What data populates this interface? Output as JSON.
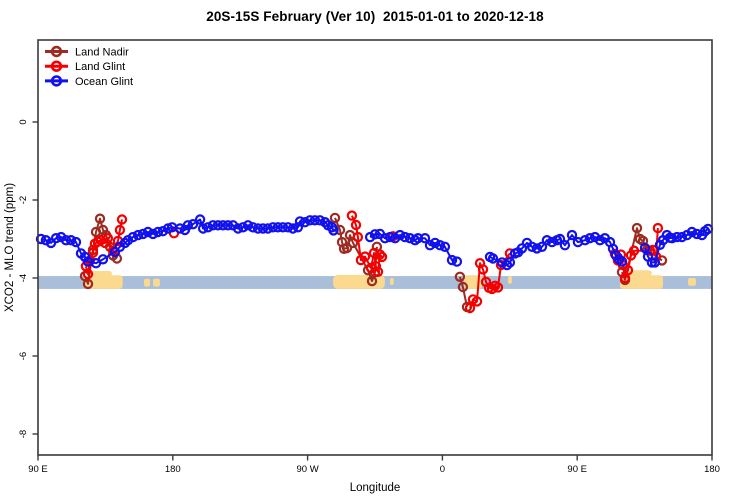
{
  "chart_data": {
    "type": "line",
    "title": "20S-15S February (Ver 10)  2015-01-01 to 2020-12-18",
    "xlabel": "Longitude",
    "ylabel": "XCO2 - MLO trend (ppm)",
    "x_axis_note": "longitude axis wraps eastward from 90E through 180, 90W, 0, 90E to 180 (450 degrees total)",
    "xlim_axis_units": [
      0,
      450
    ],
    "ylim": [
      -8.5,
      2.1
    ],
    "grid": "off",
    "legend_position": "top-left-inside",
    "axes": {
      "x": {
        "label": "Longitude",
        "ticks": [
          {
            "t": 0,
            "label": "90 E"
          },
          {
            "t": 90,
            "label": "180"
          },
          {
            "t": 180,
            "label": "90 W"
          },
          {
            "t": 270,
            "label": "0"
          },
          {
            "t": 360,
            "label": "90 E"
          },
          {
            "t": 450,
            "label": "180"
          }
        ]
      },
      "y": {
        "label": "XCO2 - MLO trend (ppm)",
        "ticks": [
          {
            "v": 0,
            "label": "0"
          },
          {
            "v": -2,
            "label": "-2"
          },
          {
            "v": -4,
            "label": "-4"
          },
          {
            "v": -6,
            "label": "-6"
          },
          {
            "v": -8,
            "label": "-8"
          }
        ]
      }
    },
    "legend": [
      {
        "name": "Land Nadir",
        "color": "#9C2B22"
      },
      {
        "name": "Land Glint",
        "color": "#F50000"
      },
      {
        "name": "Ocean Glint",
        "color": "#1111EE"
      }
    ],
    "band": {
      "meaning": "ocean strip at -4 ppm",
      "v_top": -3.95,
      "v_bottom": -4.28,
      "color": "#A9BED9"
    },
    "land_patches": [
      {
        "t0": 30.7,
        "t1": 56.5,
        "v0": -3.93,
        "v1": -4.28,
        "rx": 3
      },
      {
        "t0": 34.7,
        "t1": 49.4,
        "v0": -3.82,
        "v1": -3.95,
        "rx": 3
      },
      {
        "t0": 70.8,
        "t1": 74.8,
        "v0": -4.02,
        "v1": -4.22,
        "rx": 2
      },
      {
        "t0": 76.8,
        "t1": 81.4,
        "v0": -4.02,
        "v1": -4.22,
        "rx": 2
      },
      {
        "t0": 197.0,
        "t1": 231.6,
        "v0": -3.92,
        "v1": -4.28,
        "rx": 5
      },
      {
        "t0": 235.0,
        "t1": 237.5,
        "v0": -4.0,
        "v1": -4.18,
        "rx": 2
      },
      {
        "t0": 284.4,
        "t1": 296.4,
        "v0": -3.93,
        "v1": -4.28,
        "rx": 3
      },
      {
        "t0": 313.8,
        "t1": 316.4,
        "v0": -3.95,
        "v1": -4.15,
        "rx": 2
      },
      {
        "t0": 388.5,
        "t1": 417.3,
        "v0": -3.93,
        "v1": -4.28,
        "rx": 3
      },
      {
        "t0": 393.9,
        "t1": 409.9,
        "v0": -3.8,
        "v1": -3.95,
        "rx": 4
      },
      {
        "t0": 434.0,
        "t1": 439.3,
        "v0": -4.0,
        "v1": -4.2,
        "rx": 2
      }
    ],
    "series": [
      {
        "name": "Land Nadir",
        "color": "#9C2B22",
        "segments": [
          [
            [
              31.4,
              -3.95
            ],
            [
              33.4,
              -4.15
            ],
            [
              36.7,
              -3.28
            ],
            [
              38.7,
              -2.82
            ],
            [
              41.4,
              -2.48
            ],
            [
              43.4,
              -2.77
            ],
            [
              45.4,
              -2.9
            ],
            [
              48.1,
              -3.2
            ],
            [
              50.1,
              -3.42
            ],
            [
              52.7,
              -3.5
            ]
          ],
          [
            [
              198.3,
              -2.46
            ],
            [
              201.6,
              -2.77
            ],
            [
              203,
              -3.08
            ],
            [
              204.3,
              -3.25
            ],
            [
              206.3,
              -3.23
            ],
            [
              208.3,
              -2.9
            ],
            [
              210.3,
              -3.1
            ],
            [
              220.3,
              -3.8
            ],
            [
              223,
              -4.08
            ],
            [
              225,
              -3.85
            ],
            [
              226.3,
              -3.2
            ]
          ],
          [
            [
              281.7,
              -3.97
            ],
            [
              283.7,
              -4.23
            ],
            [
              286.4,
              -4.74
            ]
          ],
          [
            [
              389.9,
              -3.85
            ],
            [
              391.9,
              -4.05
            ],
            [
              399.9,
              -2.72
            ],
            [
              401.9,
              -3.0
            ],
            [
              403.9,
              -3.05
            ],
            [
              406.6,
              -3.28
            ],
            [
              416.6,
              -3.55
            ]
          ]
        ]
      },
      {
        "name": "Land Glint",
        "color": "#F50000",
        "segments": [
          [
            [
              32,
              -3.7
            ],
            [
              33.4,
              -3.9
            ],
            [
              34.7,
              -3.55
            ],
            [
              36.7,
              -3.35
            ],
            [
              38,
              -3.12
            ],
            [
              40,
              -3.07
            ],
            [
              42,
              -3.03
            ],
            [
              44.7,
              -3.1
            ],
            [
              46.7,
              -2.98
            ],
            [
              50.1,
              -3.3
            ],
            [
              53.4,
              -3.05
            ],
            [
              54.7,
              -2.77
            ],
            [
              56.1,
              -2.5
            ]
          ],
          [
            [
              90.8,
              -2.85
            ]
          ],
          [
            [
              209.6,
              -2.4
            ],
            [
              212.3,
              -2.64
            ],
            [
              213.6,
              -2.95
            ],
            [
              215.6,
              -3.54
            ],
            [
              218.3,
              -3.45
            ],
            [
              222.3,
              -3.74
            ],
            [
              224.3,
              -3.36
            ],
            [
              225.6,
              -3.7
            ],
            [
              227,
              -3.84
            ],
            [
              228.3,
              -3.4
            ],
            [
              229.7,
              -3.46
            ]
          ],
          [
            [
              237,
              -2.93
            ]
          ],
          [
            [
              288.4,
              -4.77
            ],
            [
              290.4,
              -4.55
            ],
            [
              293.1,
              -4.6
            ],
            [
              295.1,
              -3.62
            ],
            [
              297.1,
              -3.78
            ],
            [
              299.1,
              -4.1
            ],
            [
              301.1,
              -4.25
            ],
            [
              303.1,
              -4.28
            ],
            [
              305.1,
              -4.2
            ],
            [
              307.1,
              -4.24
            ],
            [
              309.1,
              -3.67
            ],
            [
              315.1,
              -3.37
            ]
          ],
          [
            [
              385.2,
              -3.38
            ],
            [
              387.2,
              -3.55
            ],
            [
              389.2,
              -3.4
            ],
            [
              390.5,
              -3.67
            ],
            [
              391.9,
              -4.0
            ],
            [
              393.9,
              -3.8
            ],
            [
              395.9,
              -3.42
            ],
            [
              397.9,
              -3.3
            ],
            [
              408.6,
              -3.3
            ],
            [
              410.6,
              -3.28
            ],
            [
              412.6,
              -3.45
            ],
            [
              413.9,
              -2.72
            ]
          ]
        ]
      },
      {
        "name": "Ocean Glint",
        "color": "#1111EE",
        "segments": [
          [
            [
              2,
              -3.0
            ],
            [
              5.3,
              -3.03
            ],
            [
              8.7,
              -3.1
            ],
            [
              12,
              -2.98
            ],
            [
              15.4,
              -2.95
            ],
            [
              18.7,
              -3.03
            ],
            [
              22,
              -3.03
            ],
            [
              25.4,
              -3.08
            ],
            [
              28.7,
              -3.37
            ],
            [
              31.4,
              -3.46
            ],
            [
              33.4,
              -3.58
            ],
            [
              38.7,
              -3.62
            ],
            [
              43.4,
              -3.52
            ],
            [
              51.4,
              -3.33
            ],
            [
              54.7,
              -3.2
            ],
            [
              58.1,
              -3.1
            ],
            [
              60.1,
              -3.03
            ],
            [
              63.4,
              -2.95
            ],
            [
              66.8,
              -2.9
            ],
            [
              70.1,
              -2.87
            ],
            [
              73.4,
              -2.82
            ],
            [
              76.8,
              -2.87
            ],
            [
              80.1,
              -2.82
            ],
            [
              83.4,
              -2.8
            ],
            [
              86.8,
              -2.73
            ],
            [
              89.5,
              -2.7
            ],
            [
              94.8,
              -2.73
            ],
            [
              98.1,
              -2.77
            ],
            [
              100.1,
              -2.65
            ],
            [
              103.5,
              -2.62
            ],
            [
              108.2,
              -2.5
            ],
            [
              110.2,
              -2.73
            ],
            [
              113.5,
              -2.7
            ],
            [
              116.8,
              -2.65
            ],
            [
              120.2,
              -2.65
            ],
            [
              123.5,
              -2.65
            ],
            [
              126.8,
              -2.65
            ],
            [
              130.2,
              -2.65
            ],
            [
              133.5,
              -2.73
            ],
            [
              136.9,
              -2.7
            ],
            [
              140.2,
              -2.65
            ],
            [
              143.5,
              -2.7
            ],
            [
              146.9,
              -2.73
            ],
            [
              150.2,
              -2.73
            ],
            [
              153.5,
              -2.73
            ],
            [
              156.9,
              -2.7
            ],
            [
              160.2,
              -2.7
            ],
            [
              163.5,
              -2.7
            ],
            [
              166.9,
              -2.7
            ],
            [
              170.2,
              -2.73
            ],
            [
              173.5,
              -2.7
            ],
            [
              174.9,
              -2.55
            ],
            [
              178.2,
              -2.57
            ],
            [
              181.6,
              -2.52
            ],
            [
              184.9,
              -2.52
            ],
            [
              188.2,
              -2.52
            ],
            [
              191.6,
              -2.57
            ],
            [
              193.6,
              -2.65
            ],
            [
              196.3,
              -2.7
            ],
            [
              197.3,
              -2.78
            ]
          ],
          [
            [
              221.7,
              -2.95
            ],
            [
              225,
              -2.88
            ],
            [
              228.3,
              -2.87
            ],
            [
              231.7,
              -2.98
            ],
            [
              235,
              -2.95
            ],
            [
              238.4,
              -2.98
            ],
            [
              241.7,
              -2.9
            ],
            [
              245,
              -2.95
            ],
            [
              248.4,
              -2.98
            ],
            [
              251.7,
              -3.03
            ],
            [
              253.7,
              -2.98
            ],
            [
              258.4,
              -2.98
            ],
            [
              261.7,
              -3.16
            ],
            [
              265.1,
              -3.1
            ],
            [
              268.4,
              -3.16
            ],
            [
              271.7,
              -3.2
            ],
            [
              276.4,
              -3.54
            ],
            [
              279.7,
              -3.58
            ]
          ],
          [
            [
              301.8,
              -3.46
            ],
            [
              303.8,
              -3.5
            ],
            [
              309.8,
              -3.6
            ],
            [
              313.1,
              -3.67
            ],
            [
              315.1,
              -3.6
            ],
            [
              318.5,
              -3.37
            ],
            [
              320.5,
              -3.34
            ],
            [
              323.1,
              -3.24
            ],
            [
              326.5,
              -3.1
            ],
            [
              329.8,
              -3.2
            ],
            [
              333.1,
              -3.24
            ],
            [
              336.5,
              -3.2
            ],
            [
              339.8,
              -3.03
            ],
            [
              343.2,
              -3.08
            ],
            [
              346.5,
              -3.03
            ],
            [
              348.5,
              -3.0
            ],
            [
              351.8,
              -3.16
            ],
            [
              356.5,
              -2.9
            ],
            [
              360.5,
              -3.08
            ],
            [
              365.2,
              -3.03
            ],
            [
              368.5,
              -2.98
            ],
            [
              371.9,
              -2.95
            ],
            [
              375.2,
              -3.03
            ],
            [
              378.5,
              -2.98
            ],
            [
              381.9,
              -3.08
            ],
            [
              383.9,
              -3.25
            ],
            [
              385.9,
              -3.42
            ],
            [
              387.9,
              -3.52
            ],
            [
              389.9,
              -3.58
            ]
          ],
          [
            [
              405.3,
              -3.23
            ],
            [
              407.3,
              -3.45
            ],
            [
              409.9,
              -3.6
            ],
            [
              411.9,
              -3.6
            ],
            [
              415.3,
              -3.15
            ],
            [
              417.3,
              -3.03
            ],
            [
              419.9,
              -2.9
            ],
            [
              421.9,
              -2.97
            ],
            [
              423.3,
              -2.98
            ],
            [
              426.6,
              -2.95
            ],
            [
              429.9,
              -2.95
            ],
            [
              433.3,
              -2.9
            ],
            [
              436.6,
              -2.82
            ],
            [
              439.9,
              -2.87
            ],
            [
              443.3,
              -2.9
            ],
            [
              445.3,
              -2.8
            ],
            [
              447.3,
              -2.74
            ]
          ]
        ]
      }
    ],
    "colors": {
      "land_nadir": "#9C2B22",
      "land_glint": "#F50000",
      "ocean_glint": "#1111EE",
      "ocean_band": "#A9BED9",
      "land_patch": "#FBD98F",
      "axis": "#3A3A3A",
      "text": "#000000",
      "background": "#FFFFFF"
    }
  }
}
